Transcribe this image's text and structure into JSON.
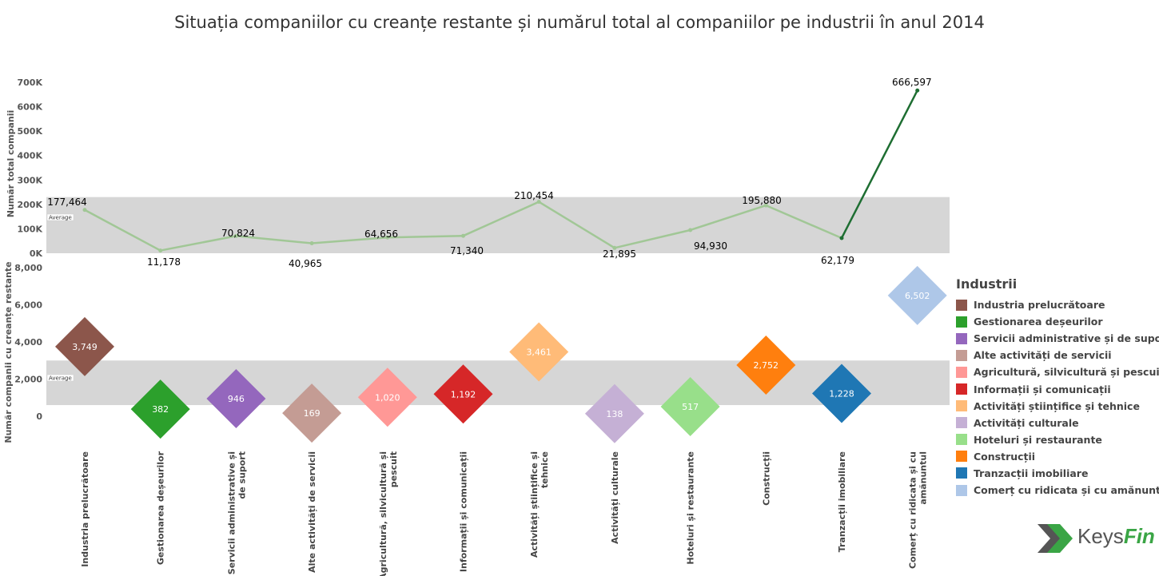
{
  "title": "Situația companiilor cu creanțe restante și numărul total al companiilor pe industrii în anul 2014",
  "legend": {
    "title": "Industrii",
    "items": [
      {
        "label": "Industria prelucrătoare",
        "color": "#8c564b"
      },
      {
        "label": "Gestionarea deșeurilor",
        "color": "#2ca02c"
      },
      {
        "label": "Servicii administrative și  de suport",
        "color": "#9467bd"
      },
      {
        "label": "Alte activități de servicii",
        "color": "#c49c94"
      },
      {
        "label": "Agricultură, silvicultură și pescuit",
        "color": "#ff9896"
      },
      {
        "label": "Informații și comunicații",
        "color": "#d62728"
      },
      {
        "label": "Activități  științifice și tehnice",
        "color": "#ffbb78"
      },
      {
        "label": "Activități culturale",
        "color": "#c5b0d5"
      },
      {
        "label": "Hoteluri și restaurante",
        "color": "#98df8a"
      },
      {
        "label": "Construcții",
        "color": "#ff7f0e"
      },
      {
        "label": "Tranzacții imobiliare",
        "color": "#1f77b4"
      },
      {
        "label": "Comerț cu ridicata și cu amănuntul",
        "color": "#aec7e8"
      }
    ]
  },
  "logo": {
    "brand_part1": "Keys",
    "brand_part2": "Fin"
  },
  "chart_data": [
    {
      "type": "line",
      "title": "Număr total companii",
      "ylabel": "Număr total companii",
      "ylim": [
        0,
        700000
      ],
      "yticks": [
        "0K",
        "100K",
        "200K",
        "300K",
        "400K",
        "500K",
        "600K",
        "700K"
      ],
      "ytick_values": [
        0,
        100000,
        200000,
        300000,
        400000,
        500000,
        600000,
        700000
      ],
      "reference_band": {
        "label": "Average",
        "from": 0,
        "to": 230000
      },
      "categories": [
        "Industria prelucrătoare",
        "Gestionarea deșeurilor",
        "Servicii administrative și de suport",
        "Alte activități de servicii",
        "Agricultură, silvicultură și pescuit",
        "Informații și comunicații",
        "Activități  științifice și tehnice",
        "Activități culturale",
        "Hoteluri și restaurante",
        "Construcții",
        "Tranzacții imobiliare",
        "Comerț cu ridicata și cu amănuntul"
      ],
      "values": [
        177464,
        11178,
        70824,
        40965,
        64656,
        71340,
        210454,
        21895,
        94930,
        195880,
        62179,
        666597
      ],
      "value_labels": [
        "177,464",
        "11,178",
        "70,824",
        "40,965",
        "64,656",
        "71,340",
        "210,454",
        "21,895",
        "94,930",
        "195,880",
        "62,179",
        "666,597"
      ],
      "colors": {
        "faded": "#a1c796",
        "highlight": "#1e6e32"
      }
    },
    {
      "type": "scatter",
      "marker": "diamond",
      "title": "Număr companii cu creanțe restante",
      "ylabel": "Număr companii cu creanțe restante",
      "ylim": [
        0,
        8000
      ],
      "yticks": [
        "0",
        "2,000",
        "4,000",
        "6,000",
        "8,000"
      ],
      "ytick_values": [
        0,
        2000,
        4000,
        6000,
        8000
      ],
      "reference_band": {
        "label": "Average",
        "from": 600,
        "to": 3000
      },
      "categories": [
        "Industria prelucrătoare",
        "Gestionarea deșeurilor",
        "Servicii administrative și de suport",
        "Alte activități de servicii",
        "Agricultură, silvicultură și pescuit",
        "Informații și comunicații",
        "Activități  științifice și tehnice",
        "Activități culturale",
        "Hoteluri și restaurante",
        "Construcții",
        "Tranzacții imobiliare",
        "Comerț cu ridicata și cu amănuntul"
      ],
      "values": [
        3749,
        382,
        946,
        169,
        1020,
        1192,
        3461,
        138,
        517,
        2752,
        1228,
        6502
      ],
      "value_labels": [
        "3,749",
        "382",
        "946",
        "169",
        "1,020",
        "1,192",
        "3,461",
        "138",
        "517",
        "2,752",
        "1,228",
        "6,502"
      ]
    }
  ],
  "x_axis_labels": [
    [
      "Industria prelucrătoare"
    ],
    [
      "Gestionarea deșeurilor"
    ],
    [
      "Servicii administrative și",
      "de suport"
    ],
    [
      "Alte activități de servicii"
    ],
    [
      "Agricultură, silvicultură și",
      "pescuit"
    ],
    [
      "Informații și comunicații"
    ],
    [
      "Activități  științifice și",
      "tehnice"
    ],
    [
      "Activități culturale"
    ],
    [
      "Hoteluri și restaurante"
    ],
    [
      "Construcții"
    ],
    [
      "Tranzacții imobiliare"
    ],
    [
      "Comerț cu ridicata și cu",
      "amănuntul"
    ]
  ]
}
